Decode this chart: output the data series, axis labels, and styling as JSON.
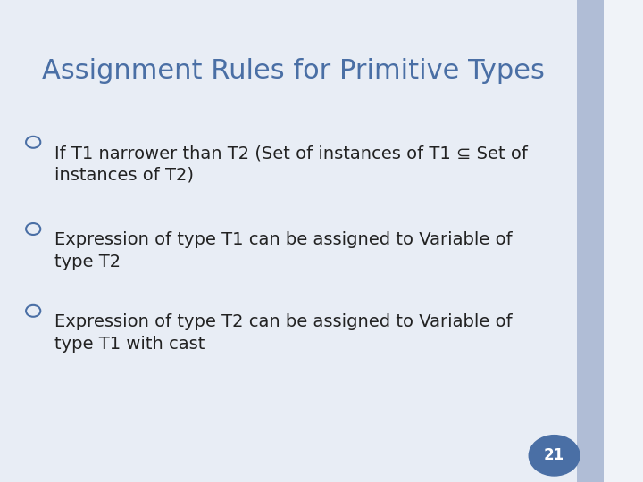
{
  "title": "Assignment Rules for Primitive Types",
  "title_color": "#4a6fa5",
  "bg_color": "#e8edf5",
  "slide_bg": "#f0f3f8",
  "right_bar_color": "#b0bdd6",
  "bullet_color": "#4a6fa5",
  "page_number": "21",
  "page_num_bg": "#4a6fa5",
  "page_num_color": "#ffffff",
  "bullet_items": [
    "If T1 narrower than T2 (Set of instances of T1 ⊆ Set of\ninstances of T2)",
    "Expression of type T1 can be assigned to Variable of\ntype T2",
    "Expression of type T2 can be assigned to Variable of\ntype T1 with cast"
  ],
  "text_color": "#222222",
  "font_size_title": 22,
  "font_size_body": 14
}
